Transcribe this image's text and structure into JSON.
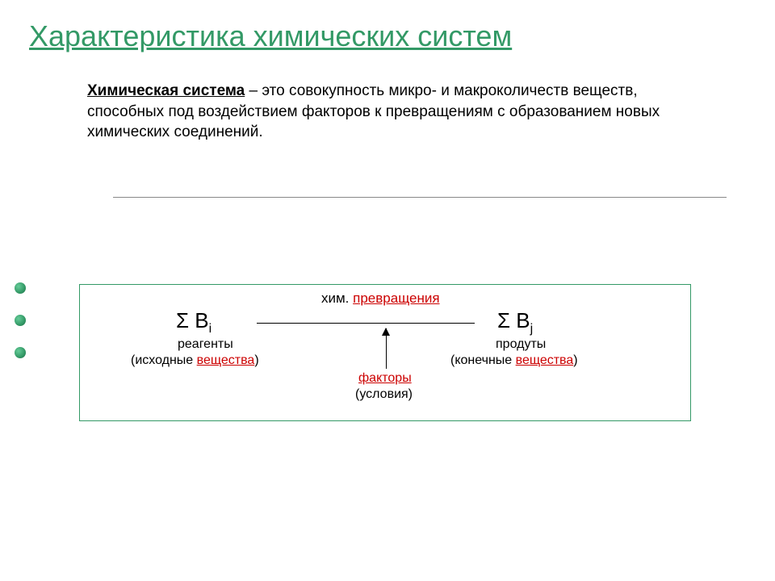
{
  "title": "Характеристика химических систем",
  "definition": {
    "term": "Химическая система",
    "text": " – это совокупность микро- и макроколичеств веществ, способных под воздействием факторов к превращениям с образованием новых химических соединений."
  },
  "diagram": {
    "chem_prefix": "хим. ",
    "chem_red": "превращения",
    "sigma_left_main": "Σ B",
    "sigma_left_sub": "i",
    "sigma_right_main": "Σ B",
    "sigma_right_sub": "j",
    "reagents": "реагенты",
    "reagents_sub_pre": "(исходные ",
    "reagents_sub_red": "вещества",
    "reagents_sub_post": ")",
    "products": "продуты",
    "products_sub_pre": "(конечные ",
    "products_sub_red": "вещества",
    "products_sub_post": ")",
    "factors": "факторы ",
    "conditions": "(условия)"
  },
  "colors": {
    "accent": "#339966",
    "red": "#cc0000",
    "text": "#000000",
    "bg": "#ffffff"
  }
}
